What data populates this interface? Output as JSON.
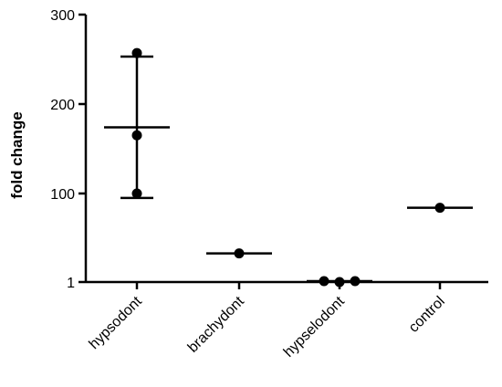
{
  "chart_data": {
    "type": "scatter",
    "title": "",
    "xlabel": "",
    "ylabel": "fold change",
    "categories": [
      "hypsodont",
      "brachydont",
      "hypselodont",
      "control"
    ],
    "yticks": [
      1,
      100,
      200,
      300
    ],
    "ylim": [
      1,
      300
    ],
    "grid": false,
    "legend": "none",
    "color": "#000000",
    "points": [
      {
        "category": "hypsodont",
        "values": [
          257,
          165,
          100
        ]
      },
      {
        "category": "brachydont",
        "values": [
          33
        ]
      },
      {
        "category": "hypselodont",
        "values": [
          2,
          1,
          2
        ]
      },
      {
        "category": "control",
        "values": [
          84
        ]
      }
    ],
    "summary": [
      {
        "category": "hypsodont",
        "mean": 174,
        "upper": 253,
        "lower": 95
      },
      {
        "category": "brachydont",
        "mean": 33
      },
      {
        "category": "hypselodont",
        "mean": 2
      },
      {
        "category": "control",
        "mean": 84
      }
    ]
  }
}
